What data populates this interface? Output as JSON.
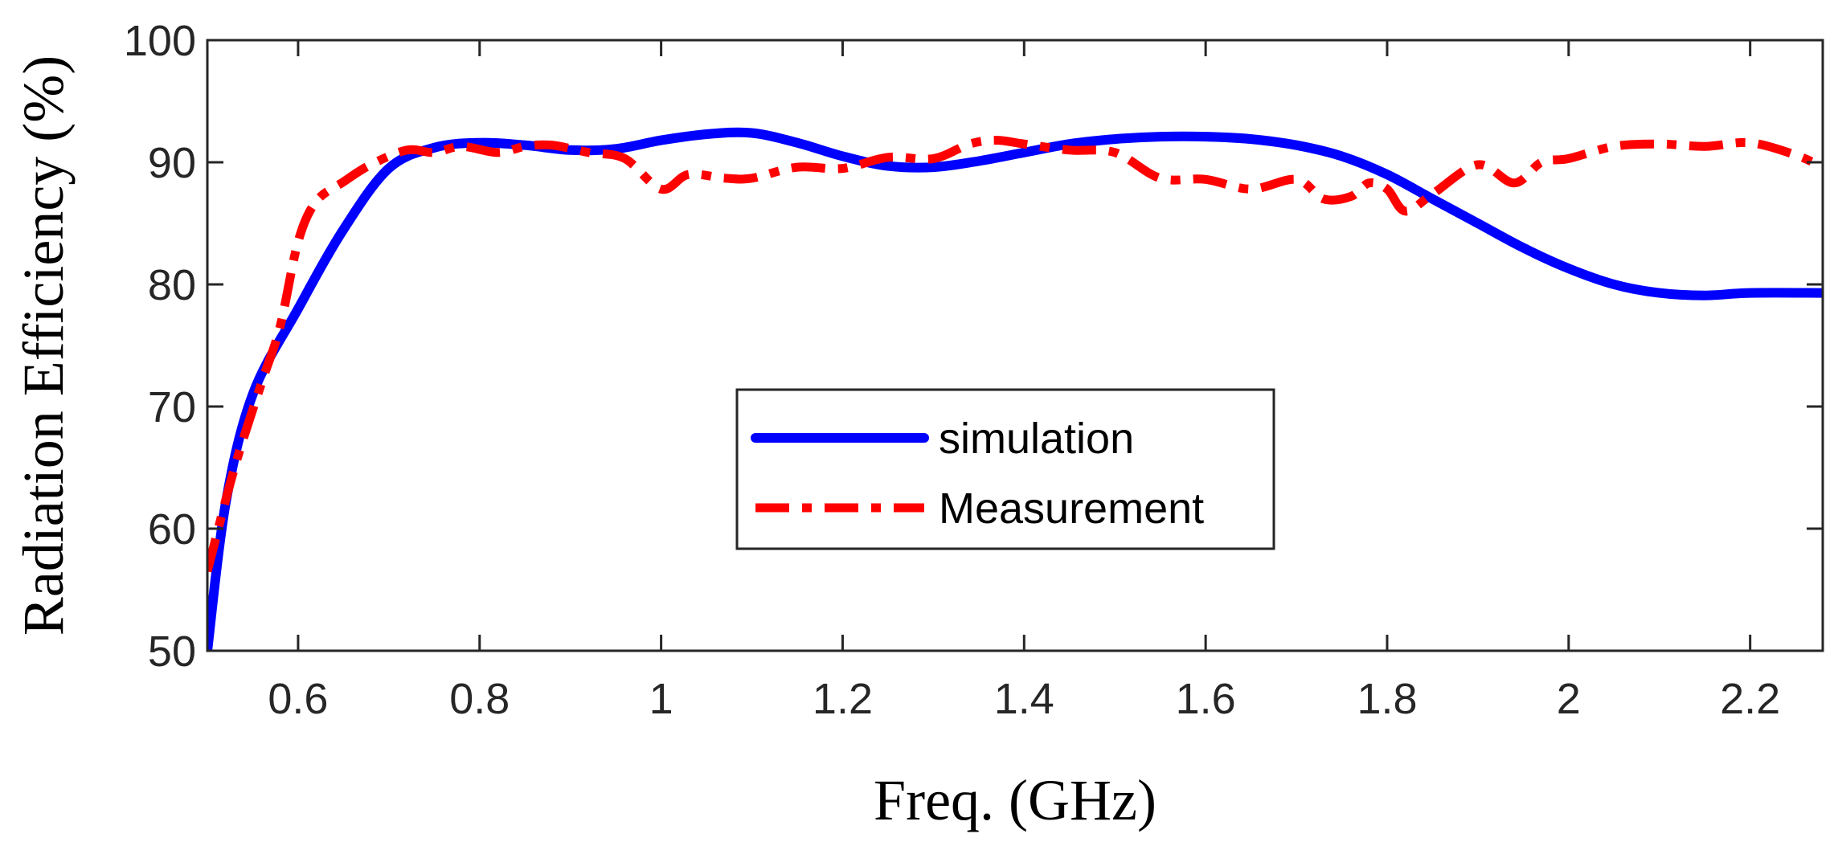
{
  "chart_data": {
    "type": "line",
    "xlabel": "Freq. (GHz)",
    "ylabel": "Radiation Efficiency (%)",
    "xlim": [
      0.5,
      2.28
    ],
    "ylim": [
      50,
      100
    ],
    "xticks": [
      0.6,
      0.8,
      1,
      1.2,
      1.4,
      1.6,
      1.8,
      2,
      2.2
    ],
    "xtick_labels": [
      "0.6",
      "0.8",
      "1",
      "1.2",
      "1.4",
      "1.6",
      "1.8",
      "2",
      "2.2"
    ],
    "yticks": [
      50,
      60,
      70,
      80,
      90,
      100
    ],
    "ytick_labels": [
      "50",
      "60",
      "70",
      "80",
      "90",
      "100"
    ],
    "grid": false,
    "legend_position": "center",
    "series": [
      {
        "name": "simulation",
        "color": "#0000FF",
        "style": "solid",
        "x": [
          0.5,
          0.52,
          0.55,
          0.6,
          0.65,
          0.7,
          0.75,
          0.8,
          0.85,
          0.9,
          0.95,
          1.0,
          1.05,
          1.1,
          1.15,
          1.2,
          1.25,
          1.3,
          1.35,
          1.4,
          1.45,
          1.5,
          1.55,
          1.6,
          1.65,
          1.7,
          1.75,
          1.8,
          1.85,
          1.9,
          1.95,
          2.0,
          2.05,
          2.1,
          2.15,
          2.2,
          2.28
        ],
        "y": [
          50,
          62,
          71,
          78,
          84.5,
          89.5,
          91.2,
          91.6,
          91.4,
          91.0,
          91.1,
          91.8,
          92.3,
          92.4,
          91.6,
          90.5,
          89.7,
          89.6,
          90.1,
          90.8,
          91.5,
          91.9,
          92.1,
          92.1,
          91.9,
          91.4,
          90.5,
          89.0,
          87.0,
          85.0,
          83.0,
          81.3,
          80.0,
          79.3,
          79.1,
          79.3,
          79.3
        ]
      },
      {
        "name": "Measurement",
        "color": "#FF0000",
        "style": "dash-dot",
        "x": [
          0.5,
          0.53,
          0.56,
          0.58,
          0.6,
          0.62,
          0.65,
          0.68,
          0.72,
          0.75,
          0.78,
          0.82,
          0.85,
          0.88,
          0.92,
          0.96,
          1.0,
          1.03,
          1.07,
          1.1,
          1.15,
          1.2,
          1.25,
          1.3,
          1.34,
          1.37,
          1.4,
          1.45,
          1.5,
          1.55,
          1.6,
          1.65,
          1.7,
          1.73,
          1.76,
          1.78,
          1.8,
          1.82,
          1.85,
          1.9,
          1.94,
          1.97,
          2.0,
          2.05,
          2.1,
          2.15,
          2.2,
          2.25,
          2.28
        ],
        "y": [
          56.5,
          65,
          72,
          76.5,
          83.5,
          86.8,
          88.4,
          89.8,
          91.0,
          90.8,
          91.3,
          90.8,
          91.3,
          91.4,
          90.8,
          90.3,
          87.8,
          89.0,
          88.7,
          88.7,
          89.6,
          89.5,
          90.4,
          90.3,
          91.5,
          91.8,
          91.5,
          91.0,
          90.8,
          88.7,
          88.6,
          87.8,
          88.6,
          87.0,
          87.2,
          88.3,
          87.8,
          86.0,
          87.4,
          89.8,
          88.3,
          90.0,
          90.3,
          91.3,
          91.5,
          91.3,
          91.6,
          90.6,
          89.6
        ]
      }
    ]
  }
}
